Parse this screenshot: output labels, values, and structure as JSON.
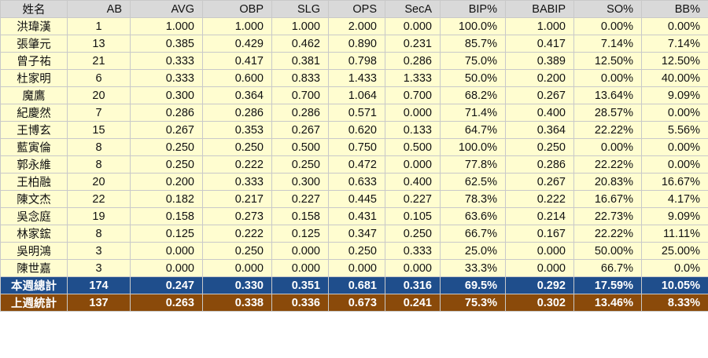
{
  "headers": {
    "name": "姓名",
    "ab": "AB",
    "avg": "AVG",
    "obp": "OBP",
    "slg": "SLG",
    "ops": "OPS",
    "seca": "SecA",
    "bip": "BIP%",
    "babip": "BABIP",
    "so": "SO%",
    "bb": "BB%"
  },
  "rows": [
    {
      "name": "洪瑋漢",
      "ab": "1",
      "avg": "1.000",
      "obp": "1.000",
      "slg": "1.000",
      "ops": "2.000",
      "seca": "0.000",
      "bip": "100.0%",
      "babip": "1.000",
      "so": "0.00%",
      "bb": "0.00%"
    },
    {
      "name": "張肇元",
      "ab": "13",
      "avg": "0.385",
      "obp": "0.429",
      "slg": "0.462",
      "ops": "0.890",
      "seca": "0.231",
      "bip": "85.7%",
      "babip": "0.417",
      "so": "7.14%",
      "bb": "7.14%"
    },
    {
      "name": "曾子祐",
      "ab": "21",
      "avg": "0.333",
      "obp": "0.417",
      "slg": "0.381",
      "ops": "0.798",
      "seca": "0.286",
      "bip": "75.0%",
      "babip": "0.389",
      "so": "12.50%",
      "bb": "12.50%"
    },
    {
      "name": "杜家明",
      "ab": "6",
      "avg": "0.333",
      "obp": "0.600",
      "slg": "0.833",
      "ops": "1.433",
      "seca": "1.333",
      "bip": "50.0%",
      "babip": "0.200",
      "so": "0.00%",
      "bb": "40.00%"
    },
    {
      "name": "魔鷹",
      "ab": "20",
      "avg": "0.300",
      "obp": "0.364",
      "slg": "0.700",
      "ops": "1.064",
      "seca": "0.700",
      "bip": "68.2%",
      "babip": "0.267",
      "so": "13.64%",
      "bb": "9.09%"
    },
    {
      "name": "紀慶然",
      "ab": "7",
      "avg": "0.286",
      "obp": "0.286",
      "slg": "0.286",
      "ops": "0.571",
      "seca": "0.000",
      "bip": "71.4%",
      "babip": "0.400",
      "so": "28.57%",
      "bb": "0.00%"
    },
    {
      "name": "王博玄",
      "ab": "15",
      "avg": "0.267",
      "obp": "0.353",
      "slg": "0.267",
      "ops": "0.620",
      "seca": "0.133",
      "bip": "64.7%",
      "babip": "0.364",
      "so": "22.22%",
      "bb": "5.56%"
    },
    {
      "name": "藍寅倫",
      "ab": "8",
      "avg": "0.250",
      "obp": "0.250",
      "slg": "0.500",
      "ops": "0.750",
      "seca": "0.500",
      "bip": "100.0%",
      "babip": "0.250",
      "so": "0.00%",
      "bb": "0.00%"
    },
    {
      "name": "郭永維",
      "ab": "8",
      "avg": "0.250",
      "obp": "0.222",
      "slg": "0.250",
      "ops": "0.472",
      "seca": "0.000",
      "bip": "77.8%",
      "babip": "0.286",
      "so": "22.22%",
      "bb": "0.00%"
    },
    {
      "name": "王柏融",
      "ab": "20",
      "avg": "0.200",
      "obp": "0.333",
      "slg": "0.300",
      "ops": "0.633",
      "seca": "0.400",
      "bip": "62.5%",
      "babip": "0.267",
      "so": "20.83%",
      "bb": "16.67%"
    },
    {
      "name": "陳文杰",
      "ab": "22",
      "avg": "0.182",
      "obp": "0.217",
      "slg": "0.227",
      "ops": "0.445",
      "seca": "0.227",
      "bip": "78.3%",
      "babip": "0.222",
      "so": "16.67%",
      "bb": "4.17%"
    },
    {
      "name": "吳念庭",
      "ab": "19",
      "avg": "0.158",
      "obp": "0.273",
      "slg": "0.158",
      "ops": "0.431",
      "seca": "0.105",
      "bip": "63.6%",
      "babip": "0.214",
      "so": "22.73%",
      "bb": "9.09%"
    },
    {
      "name": "林家鋐",
      "ab": "8",
      "avg": "0.125",
      "obp": "0.222",
      "slg": "0.125",
      "ops": "0.347",
      "seca": "0.250",
      "bip": "66.7%",
      "babip": "0.167",
      "so": "22.22%",
      "bb": "11.11%"
    },
    {
      "name": "吳明鴻",
      "ab": "3",
      "avg": "0.000",
      "obp": "0.250",
      "slg": "0.000",
      "ops": "0.250",
      "seca": "0.333",
      "bip": "25.0%",
      "babip": "0.000",
      "so": "50.00%",
      "bb": "25.00%"
    },
    {
      "name": "陳世嘉",
      "ab": "3",
      "avg": "0.000",
      "obp": "0.000",
      "slg": "0.000",
      "ops": "0.000",
      "seca": "0.000",
      "bip": "33.3%",
      "babip": "0.000",
      "so": "66.7%",
      "bb": "0.0%"
    }
  ],
  "totals": [
    {
      "name": "本週總計",
      "ab": "174",
      "avg": "0.247",
      "obp": "0.330",
      "slg": "0.351",
      "ops": "0.681",
      "seca": "0.316",
      "bip": "69.5%",
      "babip": "0.292",
      "so": "17.59%",
      "bb": "10.05%"
    },
    {
      "name": "上週統計",
      "ab": "137",
      "avg": "0.263",
      "obp": "0.338",
      "slg": "0.336",
      "ops": "0.673",
      "seca": "0.241",
      "bip": "75.3%",
      "babip": "0.302",
      "so": "13.46%",
      "bb": "8.33%"
    }
  ],
  "colors": {
    "header_bg": "#d9d9d9",
    "row_bg": "#fffdd0",
    "this_week_total_bg": "#1f4e8c",
    "last_week_total_bg": "#8a4a0a"
  }
}
